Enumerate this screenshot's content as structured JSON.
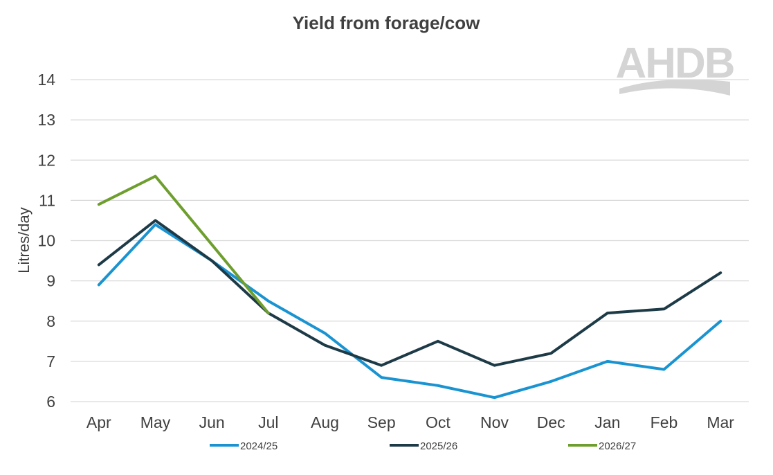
{
  "chart_data": {
    "type": "line",
    "title": "Yield from forage/cow",
    "ylabel": "Litres/day",
    "xlabel": "",
    "categories": [
      "Apr",
      "May",
      "Jun",
      "Jul",
      "Aug",
      "Sep",
      "Oct",
      "Nov",
      "Dec",
      "Jan",
      "Feb",
      "Mar"
    ],
    "ylim": [
      6,
      14
    ],
    "yticks": [
      6,
      7,
      8,
      9,
      10,
      11,
      12,
      13,
      14
    ],
    "grid": true,
    "legend_position": "bottom",
    "series": [
      {
        "name": "2024/25",
        "color": "#1a93d1",
        "values": [
          8.9,
          10.4,
          9.5,
          8.5,
          7.7,
          6.6,
          6.4,
          6.1,
          6.5,
          7.0,
          6.8,
          8.0
        ]
      },
      {
        "name": "2025/26",
        "color": "#1d3a47",
        "values": [
          9.4,
          10.5,
          9.5,
          8.2,
          7.4,
          6.9,
          7.5,
          6.9,
          7.2,
          8.2,
          8.3,
          9.2
        ]
      },
      {
        "name": "2026/27",
        "color": "#6e9e2e",
        "values": [
          10.9,
          11.6,
          9.9,
          8.2,
          null,
          null,
          null,
          null,
          null,
          null,
          null,
          null
        ]
      }
    ]
  },
  "logo": {
    "text": "AHDB",
    "icon": "ahdb-logo-swoosh"
  }
}
